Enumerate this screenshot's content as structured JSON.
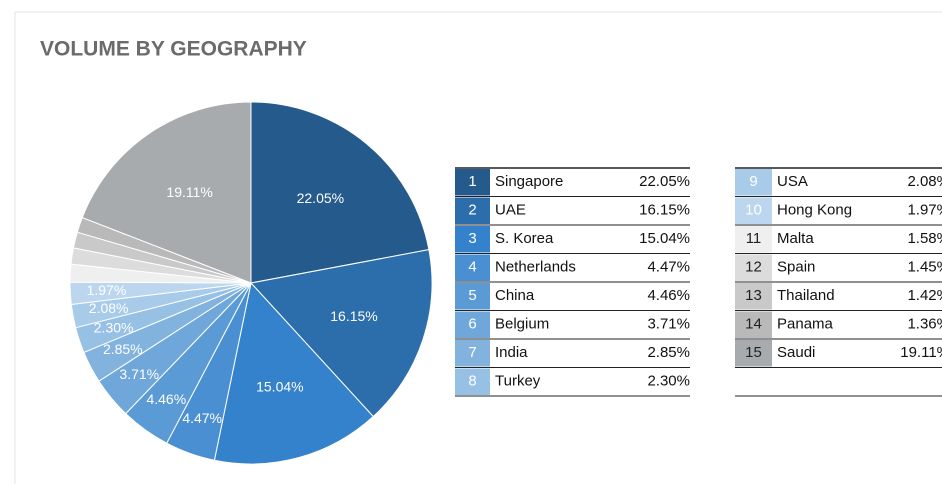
{
  "chart_data": {
    "type": "pie",
    "title": "VOLUME BY GEOGRAPHY",
    "categories": [
      "Singapore",
      "UAE",
      "S. Korea",
      "Netherlands",
      "China",
      "Belgium",
      "India",
      "Turkey",
      "USA",
      "Hong Kong",
      "Malta",
      "Spain",
      "Thailand",
      "Panama",
      "Saudi"
    ],
    "ranks": [
      1,
      2,
      3,
      4,
      5,
      6,
      7,
      8,
      9,
      10,
      11,
      12,
      13,
      14,
      15
    ],
    "values": [
      22.05,
      16.15,
      15.04,
      4.47,
      4.46,
      3.71,
      2.85,
      2.3,
      2.08,
      1.97,
      1.58,
      1.45,
      1.42,
      1.36,
      19.11
    ],
    "value_labels": [
      "22.05%",
      "16.15%",
      "15.04%",
      "4.47%",
      "4.46%",
      "3.71%",
      "2.85%",
      "2.30%",
      "2.08%",
      "1.97%",
      "1.58%",
      "1.45%",
      "1.42%",
      "1.36%",
      "19.11%"
    ],
    "colors": [
      "#245a8c",
      "#2c6dab",
      "#3482cb",
      "#4a8fd2",
      "#5b9bd5",
      "#6fa7da",
      "#82b3df",
      "#97c0e5",
      "#a9cbea",
      "#bcd6ef",
      "#efefef",
      "#dcdcdc",
      "#c9c9c9",
      "#b9b9b9",
      "#a8abae"
    ]
  }
}
